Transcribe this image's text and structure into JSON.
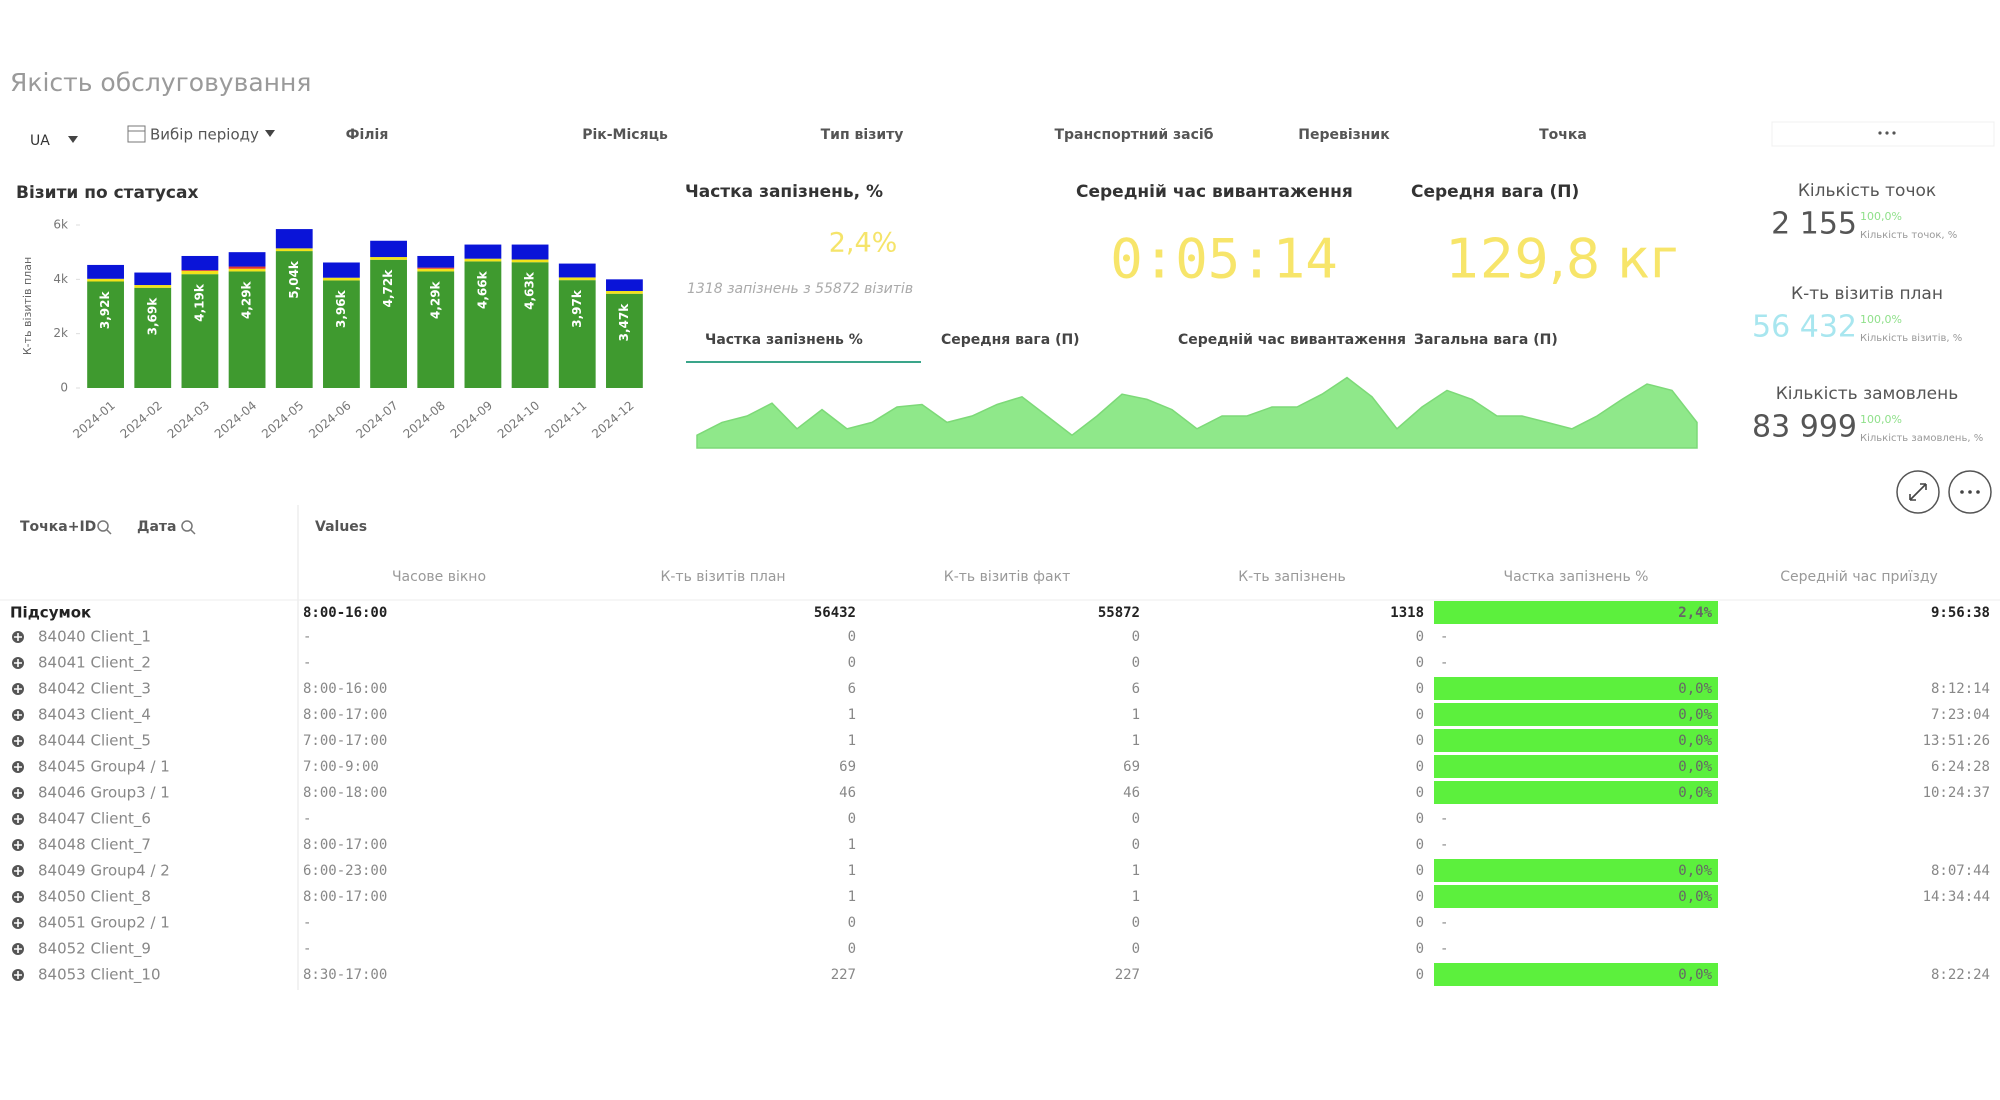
{
  "header": {
    "title": "Якість обслуговування"
  },
  "filters": {
    "language": "UA",
    "period": "Вибір періоду",
    "fields": [
      "Філія",
      "Рік-Місяць",
      "Тип візиту",
      "Транспортний засіб",
      "Перевізник",
      "Точка"
    ]
  },
  "chart_data": {
    "type": "bar",
    "stacked": true,
    "title": "Візити по статусах",
    "y_label": "К-ть візитів план",
    "categories": [
      "2024-01",
      "2024-02",
      "2024-03",
      "2024-04",
      "2024-05",
      "2024-06",
      "2024-07",
      "2024-08",
      "2024-09",
      "2024-10",
      "2024-11",
      "2024-12"
    ],
    "series": [
      {
        "color": "#3f9a2f",
        "values": [
          3920,
          3690,
          4190,
          4290,
          5040,
          3960,
          4720,
          4290,
          4660,
          4630,
          3970,
          3470
        ],
        "value_labels": [
          "3,92k",
          "3,69k",
          "4,19k",
          "4,29k",
          "5,04k",
          "3,96k",
          "4,72k",
          "4,29k",
          "4,66k",
          "4,63k",
          "3,97k",
          "3,47k"
        ]
      },
      {
        "color": "#f2e21a",
        "values": [
          100,
          100,
          120,
          100,
          100,
          100,
          100,
          100,
          100,
          100,
          100,
          100
        ]
      },
      {
        "color": "#e4342a",
        "values": [
          0,
          0,
          30,
          80,
          0,
          0,
          0,
          40,
          0,
          0,
          0,
          0
        ]
      },
      {
        "color": "#0a14d8",
        "values": [
          510,
          460,
          520,
          530,
          710,
          560,
          600,
          430,
          520,
          550,
          510,
          430
        ]
      }
    ],
    "ylim": [
      0,
      6000
    ],
    "yticks": [
      0,
      {
        "value": 2000,
        "label": "2k"
      },
      {
        "value": 4000,
        "label": "4k"
      },
      {
        "value": 6000,
        "label": "6k"
      }
    ]
  },
  "late_share": {
    "title": "Частка запізнень, %",
    "value": "2,4%",
    "note": "1318 запізнень з 55872 візитів"
  },
  "unload_time": {
    "title": "Середній час вивантаження",
    "value": "0:05:14"
  },
  "avg_weight": {
    "title": "Середня вага (П)",
    "value": "129,8 кг"
  },
  "trend": {
    "type": "area",
    "tabs": [
      "Частка запізнень %",
      "Середня вага (П)",
      "Середній час вивантаження",
      "Загальна вага (П)"
    ],
    "active_tab": 0,
    "color": "#8fe88a",
    "values": [
      10,
      20,
      25,
      35,
      15,
      30,
      15,
      20,
      32,
      34,
      20,
      25,
      34,
      40,
      25,
      10,
      25,
      42,
      38,
      30,
      15,
      25,
      25,
      32,
      32,
      42,
      55,
      40,
      15,
      32,
      45,
      38,
      25,
      25,
      20,
      15,
      25,
      38,
      50,
      45,
      20
    ]
  },
  "side_kpis": [
    {
      "title": "Кількість точок",
      "value": "2 155",
      "share": "100,0%",
      "share_label": "Кількість точок, %",
      "color": "#555555"
    },
    {
      "title": "К-ть візитів план",
      "value": "56 432",
      "share": "100,0%",
      "share_label": "Кількість візитів, %",
      "color": "#a8e6ef"
    },
    {
      "title": "Кількість замовлень",
      "value": "83 999",
      "share": "100,0%",
      "share_label": "Кількість замовлень, %",
      "color": "#555555"
    }
  ],
  "table": {
    "dimensions": [
      "Точка+ID",
      "Дата"
    ],
    "measures_label": "Values",
    "columns": [
      "Часове вікно",
      "К-ть візитів план",
      "К-ть візитів факт",
      "К-ть запізнень",
      "Частка запізнень %",
      "Середній час приїзду"
    ],
    "total": [
      "Підсумок",
      "8:00-16:00",
      56432,
      55872,
      1318,
      "2,4%",
      "9:56:38"
    ],
    "rows": [
      [
        "84040 Client_1",
        "-",
        0,
        0,
        0,
        "-",
        null
      ],
      [
        "84041 Client_2",
        "-",
        0,
        0,
        0,
        "-",
        null
      ],
      [
        "84042 Client_3",
        "8:00-16:00",
        6,
        6,
        0,
        "0,0%",
        "8:12:14"
      ],
      [
        "84043 Client_4",
        "8:00-17:00",
        1,
        1,
        0,
        "0,0%",
        "7:23:04"
      ],
      [
        "84044 Client_5",
        "7:00-17:00",
        1,
        1,
        0,
        "0,0%",
        "13:51:26"
      ],
      [
        "84045 Group4 / 1",
        "7:00-9:00",
        69,
        69,
        0,
        "0,0%",
        "6:24:28"
      ],
      [
        "84046 Group3 / 1",
        "8:00-18:00",
        46,
        46,
        0,
        "0,0%",
        "10:24:37"
      ],
      [
        "84047 Client_6",
        "-",
        0,
        0,
        0,
        "-",
        null
      ],
      [
        "84048 Client_7",
        "8:00-17:00",
        1,
        0,
        0,
        "-",
        null
      ],
      [
        "84049 Group4 / 2",
        "6:00-23:00",
        1,
        1,
        0,
        "0,0%",
        "8:07:44"
      ],
      [
        "84050 Client_8",
        "8:00-17:00",
        1,
        1,
        0,
        "0,0%",
        "14:34:44"
      ],
      [
        "84051 Group2 / 1",
        "-",
        0,
        0,
        0,
        "-",
        null
      ],
      [
        "84052 Client_9",
        "-",
        0,
        0,
        0,
        "-",
        null
      ],
      [
        "84053 Client_10",
        "8:30-17:00",
        227,
        227,
        0,
        "0,0%",
        "8:22:24"
      ]
    ]
  }
}
